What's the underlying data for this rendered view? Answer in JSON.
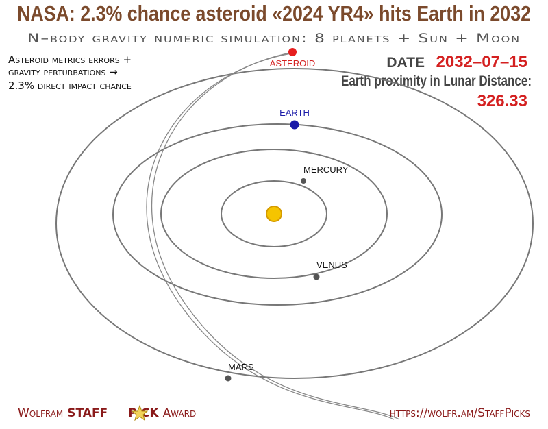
{
  "header": {
    "title": "NASA: 2.3% chance asteroid «2024 YR4» hits Earth in 2032",
    "subtitle": "N–body gravity numeric simulation: 8 planets + Sun + Moon"
  },
  "note": {
    "lines": [
      "Asteroid metrics errors +",
      "gravity perturbations →",
      "2.3% direct impact chance"
    ]
  },
  "readout": {
    "date_label": "DATE",
    "date": "2032–07–15",
    "proximity_label": "Earth proximity in Lunar Distance:",
    "proximity": 326.33
  },
  "bodies": {
    "asteroid": "ASTEROID",
    "earth": "EARTH",
    "mercury": "MERCURY",
    "venus": "VENUS",
    "mars": "MARS"
  },
  "footer": {
    "award": [
      "Wolfram",
      "STAFF",
      "PICK",
      "Award"
    ],
    "url": "https://wolfr.am/StaffPicks"
  }
}
